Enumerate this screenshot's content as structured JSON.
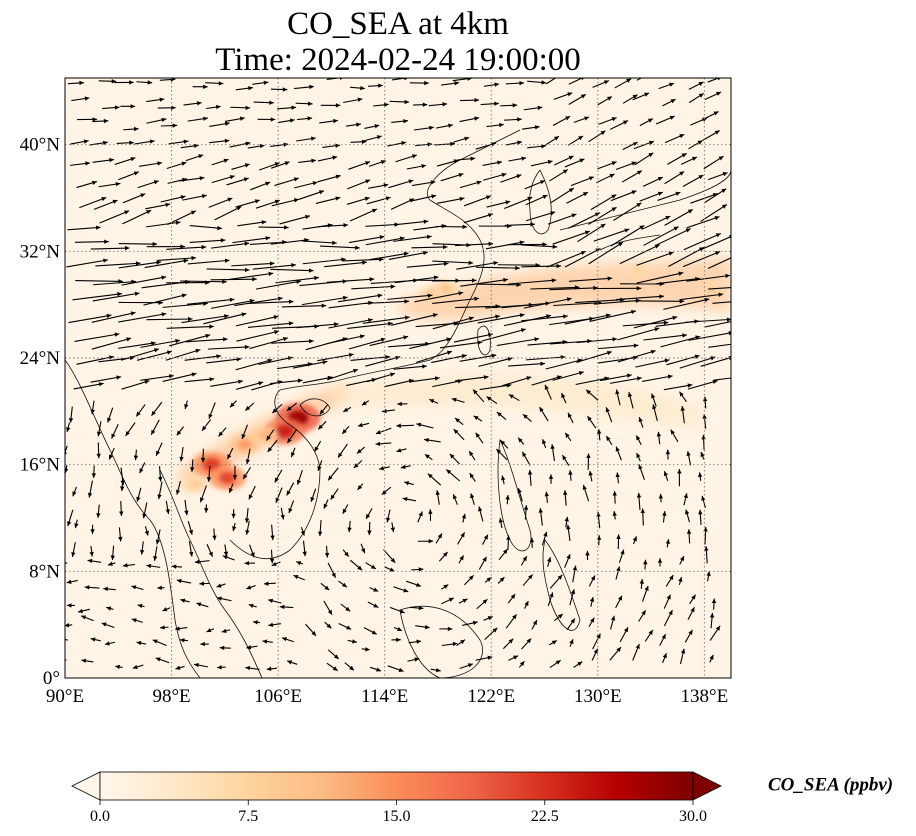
{
  "title_line1": "CO_SEA at 4km",
  "title_line2": "Time: 2024-02-24 19:00:00",
  "map": {
    "lon_range": [
      90,
      140
    ],
    "lat_range": [
      0,
      45
    ],
    "lon_ticks": [
      {
        "value": 90,
        "label": "90°E"
      },
      {
        "value": 98,
        "label": "98°E"
      },
      {
        "value": 106,
        "label": "106°E"
      },
      {
        "value": 114,
        "label": "114°E"
      },
      {
        "value": 122,
        "label": "122°E"
      },
      {
        "value": 130,
        "label": "130°E"
      },
      {
        "value": 138,
        "label": "138°E"
      }
    ],
    "lat_ticks": [
      {
        "value": 0,
        "label": "0°"
      },
      {
        "value": 8,
        "label": "8°N"
      },
      {
        "value": 16,
        "label": "16°N"
      },
      {
        "value": 24,
        "label": "24°N"
      },
      {
        "value": 32,
        "label": "32°N"
      },
      {
        "value": 40,
        "label": "40°N"
      }
    ],
    "gridlines": true,
    "field": "CO_SEA",
    "units": "ppbv",
    "vectors": "wind",
    "plume_hotspots": [
      {
        "lon": 107.5,
        "lat": 19.5,
        "value": 28
      },
      {
        "lon": 106.5,
        "lat": 18.5,
        "value": 24
      },
      {
        "lon": 101.0,
        "lat": 16.0,
        "value": 22
      },
      {
        "lon": 102.2,
        "lat": 15.0,
        "value": 21
      },
      {
        "lon": 103.5,
        "lat": 17.5,
        "value": 14
      },
      {
        "lon": 105.0,
        "lat": 18.2,
        "value": 12
      },
      {
        "lon": 118.5,
        "lat": 29.2,
        "value": 10
      },
      {
        "lon": 117.5,
        "lat": 28.8,
        "value": 9
      },
      {
        "lon": 133.0,
        "lat": 30.5,
        "value": 8
      },
      {
        "lon": 138.5,
        "lat": 29.0,
        "value": 9
      },
      {
        "lon": 99.8,
        "lat": 14.5,
        "value": 9
      }
    ]
  },
  "colorbar": {
    "label": "CO_SEA (ppbv)",
    "min": 0,
    "max": 30,
    "extend": "both",
    "colormap": "OrRd",
    "colors": [
      "#fff7ec",
      "#fee8c8",
      "#fdd49e",
      "#fdbb84",
      "#fc8d59",
      "#ef6548",
      "#d7301f",
      "#b30000",
      "#7f0000"
    ],
    "ticks": [
      {
        "value": 0,
        "label": "0.0"
      },
      {
        "value": 7.5,
        "label": "7.5"
      },
      {
        "value": 15,
        "label": "15.0"
      },
      {
        "value": 22.5,
        "label": "22.5"
      },
      {
        "value": 30,
        "label": "30.0"
      }
    ]
  }
}
